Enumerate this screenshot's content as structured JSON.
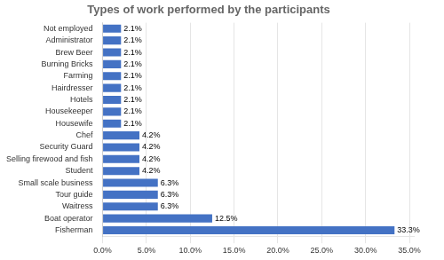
{
  "chart_data": {
    "type": "bar",
    "orientation": "horizontal",
    "title": "Types of work performed by the participants",
    "categories": [
      "Not employed",
      "Administrator",
      "Brew Beer",
      "Burning Bricks",
      "Farming",
      "Hairdresser",
      "Hotels",
      "Housekeeper",
      "Housewife",
      "Chef",
      "Security Guard",
      "Selling firewood and fish",
      "Student",
      "Small scale business",
      "Tour guide",
      "Waitress",
      "Boat operator",
      "Fisherman"
    ],
    "values": [
      2.1,
      2.1,
      2.1,
      2.1,
      2.1,
      2.1,
      2.1,
      2.1,
      2.1,
      4.2,
      4.2,
      4.2,
      4.2,
      6.3,
      6.3,
      6.3,
      12.5,
      33.3
    ],
    "value_labels": [
      "2.1%",
      "2.1%",
      "2.1%",
      "2.1%",
      "2.1%",
      "2.1%",
      "2.1%",
      "2.1%",
      "2.1%",
      "4.2%",
      "4.2%",
      "4.2%",
      "4.2%",
      "6.3%",
      "6.3%",
      "6.3%",
      "12.5%",
      "33.3%"
    ],
    "color": "#4472C4",
    "xlim": [
      0,
      35.5
    ],
    "xticks": [
      {
        "value": 0,
        "label": "0.0%"
      },
      {
        "value": 5.0,
        "label": "5.0%"
      },
      {
        "value": 10.0,
        "label": "10.0%"
      },
      {
        "value": 15.0,
        "label": "15.0%"
      },
      {
        "value": 20.0,
        "label": "20.0%"
      },
      {
        "value": 25.0,
        "label": "25.0%"
      },
      {
        "value": 30.0,
        "label": "30.0%"
      },
      {
        "value": 35.0,
        "label": "35.0%"
      }
    ],
    "grid": true,
    "data_labels": true
  }
}
